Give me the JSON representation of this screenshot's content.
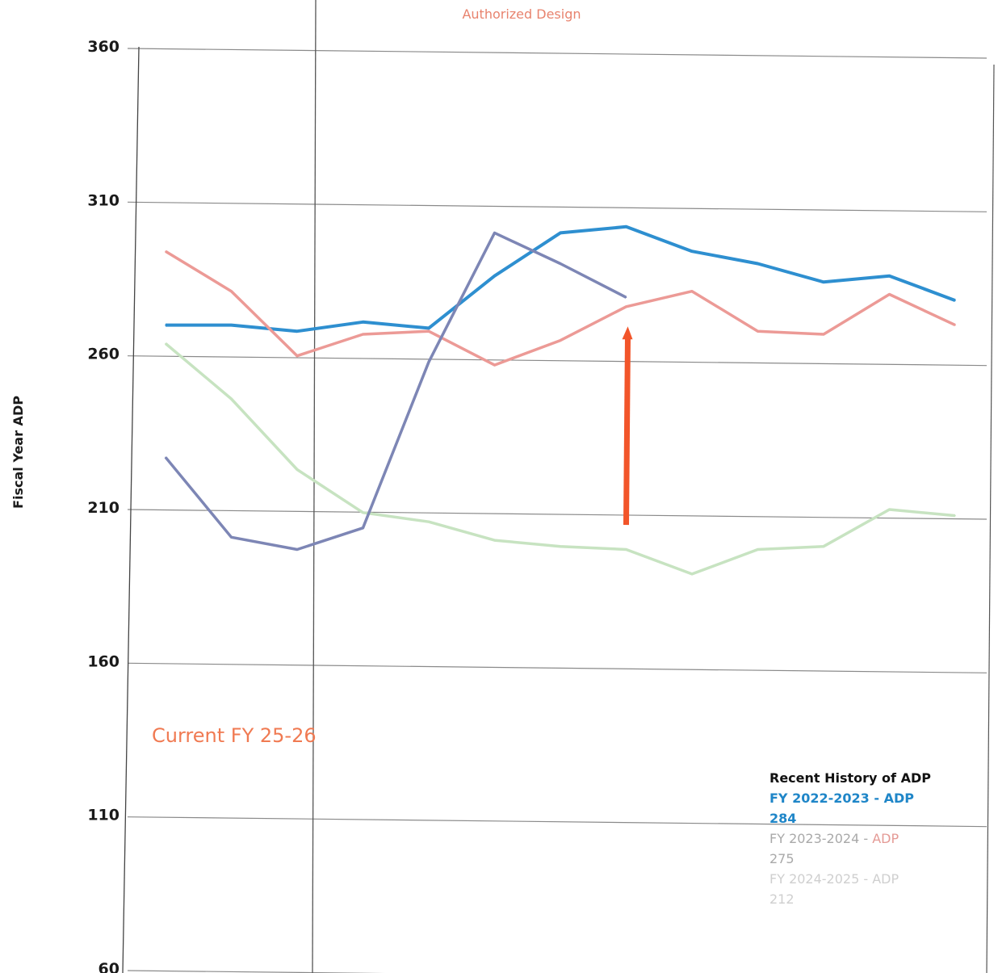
{
  "chart_data": {
    "type": "line",
    "title": "",
    "xlabel": "",
    "ylabel": "Fiscal Year ADP",
    "ylim": [
      60,
      360
    ],
    "yticks": [
      360,
      310,
      260,
      210,
      160,
      110,
      60
    ],
    "grid": true,
    "x": [
      1,
      2,
      3,
      4,
      5,
      6,
      7,
      8,
      9,
      10,
      11,
      12,
      13
    ],
    "series": [
      {
        "color": "#2e8fd0",
        "values": [
          270,
          270,
          268,
          271,
          269,
          286,
          300,
          302,
          294,
          290,
          284,
          286,
          278
        ]
      },
      {
        "color": "#ec9a96",
        "values": [
          294,
          281,
          260,
          267,
          268,
          257,
          265,
          276,
          281,
          268,
          267,
          280,
          270
        ]
      },
      {
        "color": "#c7e3c1",
        "values": [
          264,
          246,
          223,
          209,
          206,
          200,
          198,
          197,
          189,
          197,
          198,
          210,
          208
        ]
      },
      {
        "color": "#7d86b5",
        "values": [
          227,
          201,
          197,
          204,
          258,
          300,
          290,
          279,
          null,
          null,
          null,
          null,
          null
        ]
      }
    ],
    "annotations": {
      "top": "Authorized Design",
      "current": "Current FY 25-26",
      "arrow": {
        "x": 8,
        "from": 205,
        "to": 268,
        "color": "#f2552a"
      }
    },
    "legend": {
      "placement": "bottom-right",
      "title": "Recent History of ADP",
      "lines": [
        {
          "text": "FY 2022-2023 - ADP",
          "style": "legend-1"
        },
        {
          "text": "284",
          "style": "legend-1"
        },
        {
          "text": "FY 2023-2024 - ",
          "suffix": "ADP",
          "style": "legend-2"
        },
        {
          "text": "275",
          "style": "legend-2"
        },
        {
          "text": "FY 2024-2025 - ADP",
          "style": "legend-3"
        },
        {
          "text": "212",
          "style": "legend-3"
        }
      ]
    }
  }
}
